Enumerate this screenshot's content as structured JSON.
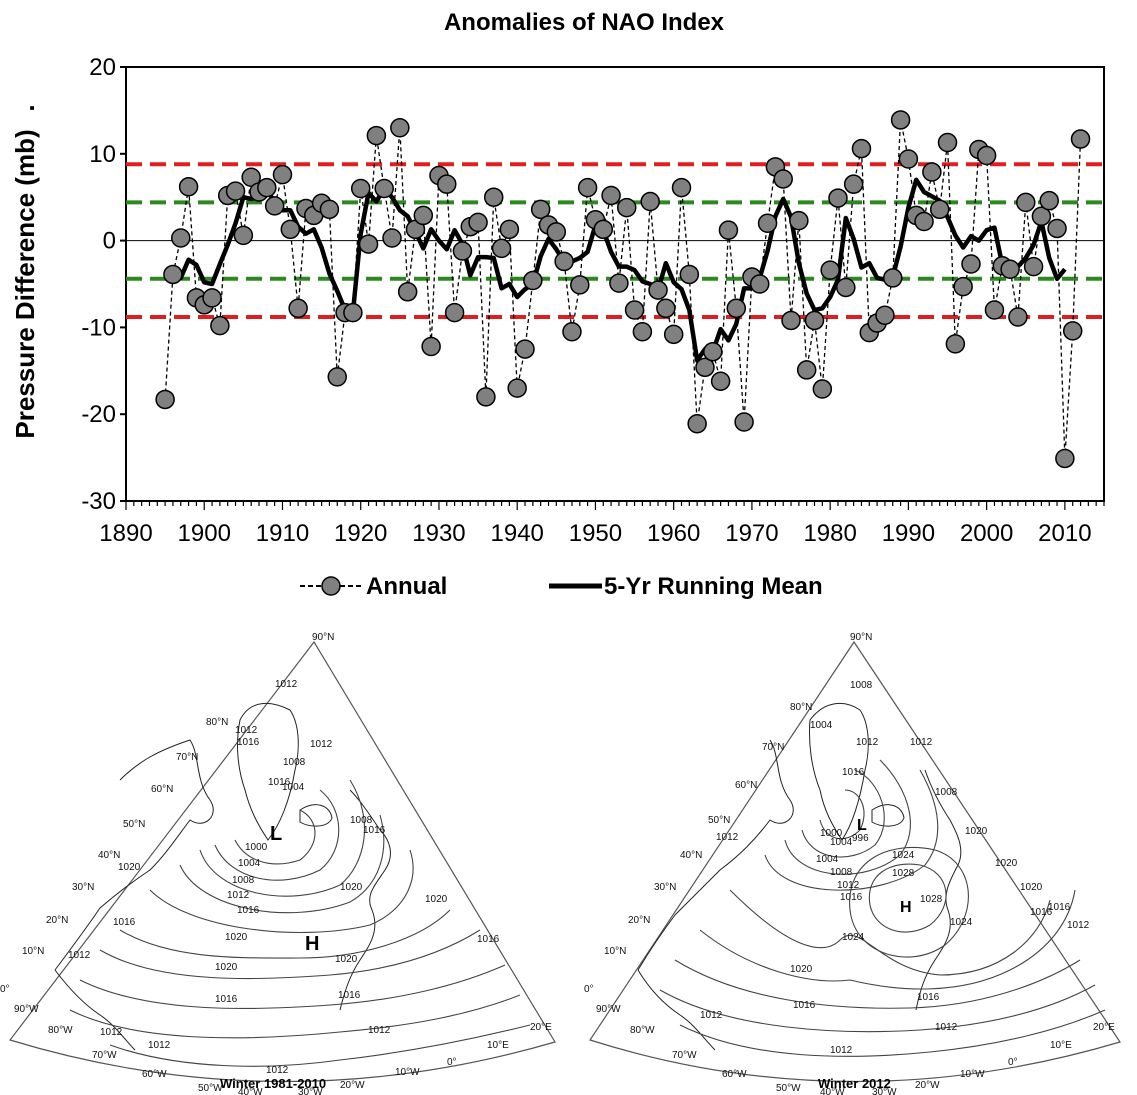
{
  "chart_data": {
    "type": "line",
    "title": "Anomalies of NAO Index",
    "ylabel": "Pressure Difference (mb)",
    "ylabel_suffix": ".",
    "xlabel": "",
    "xlim": [
      1890,
      2015
    ],
    "ylim": [
      -30,
      20
    ],
    "xticks": [
      1890,
      1900,
      1910,
      1920,
      1930,
      1940,
      1950,
      1960,
      1970,
      1980,
      1990,
      2000,
      2010
    ],
    "yticks": [
      -30,
      -20,
      -10,
      0,
      10,
      20
    ],
    "grid": false,
    "legend_position": "bottom",
    "reference_lines": [
      {
        "y": 8.8,
        "color": "#e01e1e",
        "style": "dashed"
      },
      {
        "y": 4.4,
        "color": "#2a8a1e",
        "style": "dashed"
      },
      {
        "y": -4.4,
        "color": "#2a8a1e",
        "style": "dashed"
      },
      {
        "y": -8.8,
        "color": "#e01e1e",
        "style": "dashed"
      },
      {
        "y": 0,
        "color": "#000000",
        "style": "solid"
      }
    ],
    "x": [
      1895,
      1896,
      1897,
      1898,
      1899,
      1900,
      1901,
      1902,
      1903,
      1904,
      1905,
      1906,
      1907,
      1908,
      1909,
      1910,
      1911,
      1912,
      1913,
      1914,
      1915,
      1916,
      1917,
      1918,
      1919,
      1920,
      1921,
      1922,
      1923,
      1924,
      1925,
      1926,
      1927,
      1928,
      1929,
      1930,
      1931,
      1932,
      1933,
      1934,
      1935,
      1936,
      1937,
      1938,
      1939,
      1940,
      1941,
      1942,
      1943,
      1944,
      1945,
      1946,
      1947,
      1948,
      1949,
      1950,
      1951,
      1952,
      1953,
      1954,
      1955,
      1956,
      1957,
      1958,
      1959,
      1960,
      1961,
      1962,
      1963,
      1964,
      1965,
      1966,
      1967,
      1968,
      1969,
      1970,
      1971,
      1972,
      1973,
      1974,
      1975,
      1976,
      1977,
      1978,
      1979,
      1980,
      1981,
      1982,
      1983,
      1984,
      1985,
      1986,
      1987,
      1988,
      1989,
      1990,
      1991,
      1992,
      1993,
      1994,
      1995,
      1996,
      1997,
      1998,
      1999,
      2000,
      2001,
      2002,
      2003,
      2004,
      2005,
      2006,
      2007,
      2008,
      2009,
      2010,
      2011,
      2012
    ],
    "series": [
      {
        "name": "Annual",
        "color": "#808080",
        "style": "dashed-markers",
        "values": [
          -18.3,
          -3.9,
          0.3,
          6.2,
          -6.6,
          -7.4,
          -6.6,
          -9.8,
          5.2,
          5.7,
          0.6,
          7.3,
          5.6,
          6.1,
          4.0,
          7.6,
          1.3,
          -7.8,
          3.7,
          2.9,
          4.3,
          3.6,
          -15.7,
          -8.3,
          -8.3,
          6.0,
          -0.4,
          12.1,
          6.0,
          0.3,
          13.0,
          -5.9,
          1.3,
          2.9,
          -12.2,
          7.5,
          6.5,
          -8.3,
          -1.2,
          1.6,
          2.1,
          -18.0,
          5.0,
          -0.9,
          1.3,
          -17.0,
          -12.5,
          -4.6,
          3.6,
          1.8,
          1.0,
          -2.4,
          -10.5,
          -5.1,
          6.1,
          2.4,
          1.3,
          5.2,
          -4.9,
          3.8,
          -8.0,
          -10.5,
          4.5,
          -5.7,
          -7.8,
          -10.8,
          6.1,
          -3.9,
          -21.1,
          -14.6,
          -12.8,
          -16.2,
          1.2,
          -7.8,
          -20.9,
          -4.2,
          -5.0,
          2.0,
          8.5,
          7.1,
          -9.2,
          2.3,
          -14.9,
          -9.2,
          -17.1,
          -3.4,
          4.9,
          -5.4,
          6.5,
          10.6,
          -10.6,
          -9.5,
          -8.6,
          -4.3,
          13.9,
          9.4,
          2.9,
          2.2,
          7.9,
          3.6,
          11.3,
          -11.9,
          -5.3,
          -2.7,
          10.5,
          9.8,
          -8.0,
          -2.9,
          -3.3,
          -8.8,
          4.4,
          -3.0,
          2.8,
          4.6,
          1.4,
          -25.1,
          -10.4,
          11.7
        ]
      },
      {
        "name": "5-Yr Running Mean",
        "color": "#000000",
        "style": "solid-thick",
        "x": [
          1896,
          1897,
          1898,
          1899,
          1900,
          1901,
          1902,
          1903,
          1904,
          1905,
          1906,
          1907,
          1908,
          1909,
          1910,
          1911,
          1912,
          1913,
          1914,
          1915,
          1916,
          1917,
          1918,
          1919,
          1920,
          1921,
          1922,
          1923,
          1924,
          1925,
          1926,
          1927,
          1928,
          1929,
          1930,
          1931,
          1932,
          1933,
          1934,
          1935,
          1936,
          1937,
          1938,
          1939,
          1940,
          1941,
          1942,
          1943,
          1944,
          1945,
          1946,
          1947,
          1948,
          1949,
          1950,
          1951,
          1952,
          1953,
          1954,
          1955,
          1956,
          1957,
          1958,
          1959,
          1960,
          1961,
          1962,
          1963,
          1964,
          1965,
          1966,
          1967,
          1968,
          1969,
          1970,
          1971,
          1972,
          1973,
          1974,
          1975,
          1976,
          1977,
          1978,
          1979,
          1980,
          1981,
          1982,
          1983,
          1984,
          1985,
          1986,
          1987,
          1988,
          1989,
          1990,
          1991,
          1992,
          1993,
          1994,
          1995,
          1996,
          1997,
          1998,
          1999,
          2000,
          2001,
          2002,
          2003,
          2004,
          2005,
          2006,
          2007,
          2008,
          2009,
          2010
        ],
        "values": [
          -3.5,
          -4.3,
          -2.2,
          -2.8,
          -4.8,
          -5.0,
          -2.7,
          -0.5,
          2.0,
          5.0,
          4.8,
          5.0,
          5.8,
          4.5,
          3.5,
          3.5,
          1.6,
          0.8,
          1.3,
          -0.8,
          -3.8,
          -5.8,
          -8.0,
          -8.3,
          0.8,
          5.5,
          4.5,
          6.0,
          5.0,
          3.5,
          2.8,
          1.0,
          -0.9,
          1.3,
          0.0,
          -1.0,
          1.2,
          -0.4,
          -4.0,
          -1.9,
          -1.9,
          -2.0,
          -5.5,
          -5.0,
          -6.5,
          -5.6,
          -5.0,
          -1.8,
          0.2,
          -1.0,
          -2.5,
          -2.4,
          -2.0,
          -1.3,
          1.8,
          1.2,
          -1.3,
          -3.0,
          -3.0,
          -3.4,
          -4.7,
          -5.0,
          -5.7,
          -2.6,
          -4.8,
          -5.6,
          -8.0,
          -13.8,
          -12.5,
          -12.8,
          -10.2,
          -11.5,
          -9.6,
          -5.5,
          -5.5,
          -4.3,
          -1.2,
          2.8,
          4.8,
          2.7,
          -2.6,
          -6.1,
          -8.0,
          -7.8,
          -6.5,
          -4.5,
          2.6,
          0.2,
          -3.1,
          -2.6,
          -4.3,
          -4.5,
          -4.2,
          -0.7,
          3.8,
          7.0,
          5.6,
          5.1,
          4.6,
          2.7,
          0.6,
          -0.8,
          0.5,
          0.0,
          1.2,
          1.5,
          -2.8,
          -3.0,
          -3.0,
          -2.0,
          -0.5,
          2.2,
          -2.0,
          -4.4,
          -3.3
        ]
      }
    ]
  },
  "maps": [
    {
      "caption": "Winter 1981-2010",
      "center_labels": [
        "L",
        "H"
      ],
      "isobars": [
        "1012",
        "1016",
        "1012",
        "1008",
        "1016",
        "1004",
        "1008",
        "1000",
        "1004",
        "1008",
        "1012",
        "1016",
        "1020",
        "1020",
        "1020",
        "1020",
        "1020",
        "1016",
        "1016",
        "1016",
        "1016",
        "1012",
        "1012",
        "1012",
        "1012",
        "1012",
        "1012",
        "1016",
        "1020"
      ],
      "lat_labels": [
        "90°N",
        "80°N",
        "70°N",
        "60°N",
        "50°N",
        "40°N",
        "30°N",
        "20°N",
        "10°N",
        "0°"
      ],
      "lon_labels": [
        "90°W",
        "80°W",
        "70°W",
        "60°W",
        "50°W",
        "40°W",
        "30°W",
        "20°W",
        "10°W",
        "0°",
        "10°E",
        "20°E"
      ]
    },
    {
      "caption": "Winter 2012",
      "center_labels": [
        "L",
        "H"
      ],
      "isobars": [
        "1008",
        "1004",
        "1012",
        "1016",
        "1012",
        "1008",
        "996",
        "1004",
        "1000",
        "1004",
        "1008",
        "1012",
        "1016",
        "1020",
        "1024",
        "1028",
        "1028",
        "1024",
        "1020",
        "1024",
        "1020",
        "1016",
        "1016",
        "1016",
        "1012",
        "1012",
        "1012",
        "1012",
        "1012",
        "1020",
        "1016"
      ],
      "lat_labels": [
        "90°N",
        "80°N",
        "70°N",
        "60°N",
        "50°N",
        "40°N",
        "30°N",
        "20°N",
        "10°N",
        "0°"
      ],
      "lon_labels": [
        "90°W",
        "80°W",
        "70°W",
        "60°W",
        "50°W",
        "40°W",
        "30°W",
        "20°W",
        "10°W",
        "0°",
        "10°E",
        "20°E"
      ]
    }
  ]
}
